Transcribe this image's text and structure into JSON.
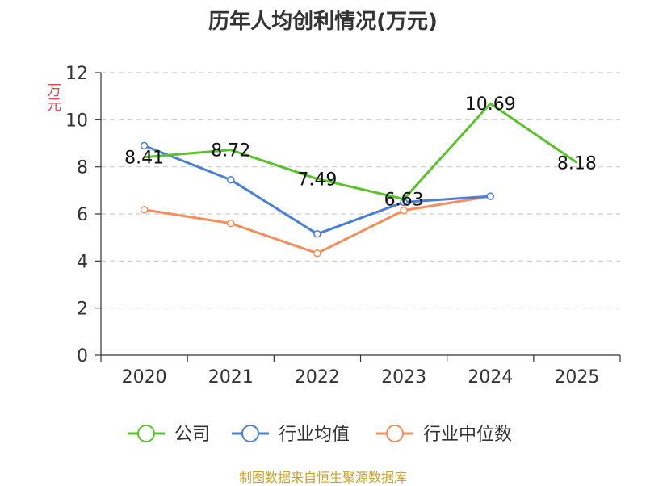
{
  "chart_data": {
    "type": "line",
    "title": "历年人均创利情况(万元)",
    "xlabel": "",
    "ylabel": "万元",
    "categories": [
      "2020",
      "2021",
      "2022",
      "2023",
      "2024",
      "2025"
    ],
    "ylim": [
      0,
      12
    ],
    "yticks": [
      "0",
      "2",
      "4",
      "6",
      "8",
      "10",
      "12"
    ],
    "grid": true,
    "legend_position": "bottom",
    "series": [
      {
        "name": "公司",
        "color": "#5ac32c",
        "values": [
          8.41,
          8.72,
          7.49,
          6.63,
          10.69,
          8.18
        ],
        "labels": [
          "8.41",
          "8.72",
          "7.49",
          "6.63",
          "10.69",
          "8.18"
        ]
      },
      {
        "name": "行业均值",
        "color": "#4a7fd8",
        "values": [
          8.9,
          7.45,
          5.15,
          6.5,
          6.75,
          null
        ]
      },
      {
        "name": "行业中位数",
        "color": "#f58e5a",
        "values": [
          6.18,
          5.6,
          4.33,
          6.15,
          6.75,
          null
        ]
      }
    ]
  },
  "source_text": "制图数据来自恒生聚源数据库"
}
